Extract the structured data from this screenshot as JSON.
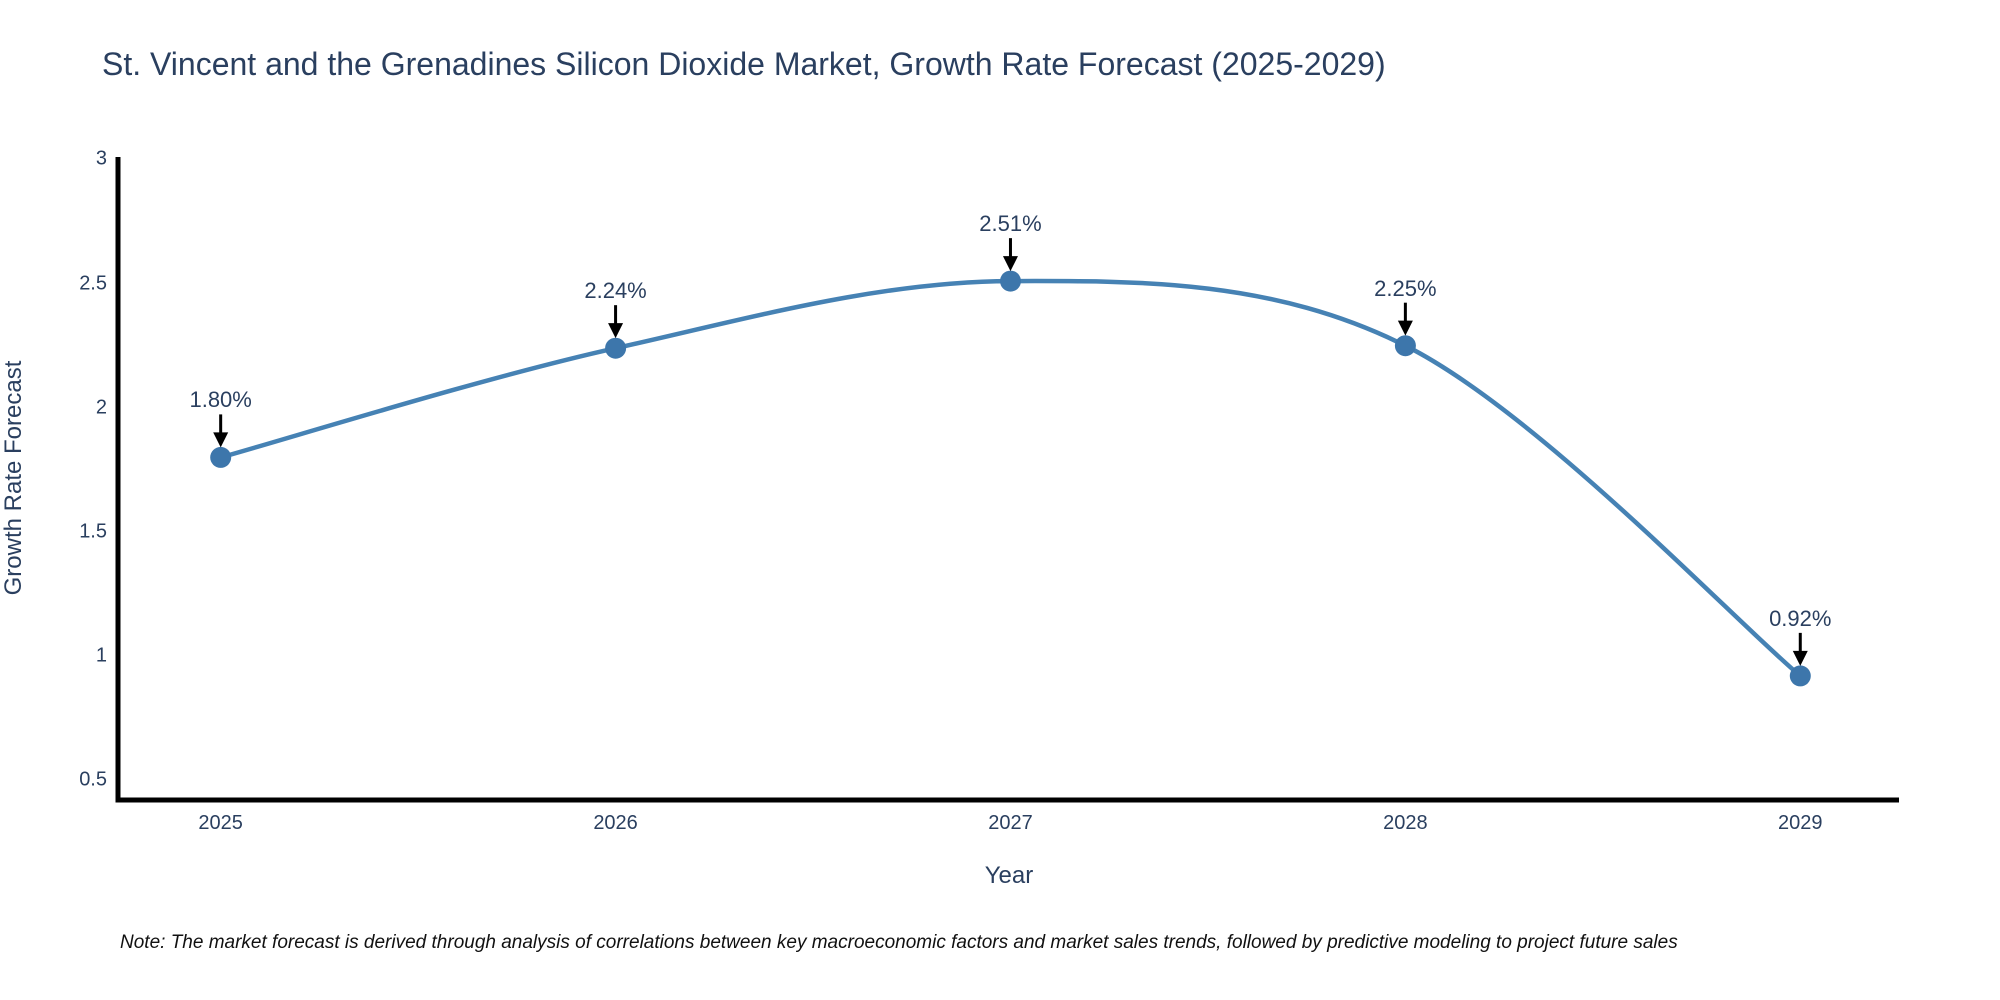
{
  "chart": {
    "title": "St. Vincent and the Grenadines Silicon Dioxide Market, Growth Rate Forecast (2025-2029)",
    "xlabel": "Year",
    "ylabel": "Growth Rate Forecast",
    "note": "Note: The market forecast is derived through analysis of correlations between key macroeconomic factors and market sales trends, followed by predictive modeling to project future sales"
  },
  "chart_data": {
    "type": "line",
    "line_shape": "spline",
    "title": "St. Vincent and the Grenadines Silicon Dioxide Market, Growth Rate Forecast (2025-2029)",
    "xlabel": "Year",
    "ylabel": "Growth Rate Forecast",
    "x": [
      2025,
      2026,
      2027,
      2028,
      2029
    ],
    "y": [
      1.8,
      2.24,
      2.51,
      2.25,
      0.92
    ],
    "point_labels": [
      "1.80%",
      "2.24%",
      "2.51%",
      "2.25%",
      "0.92%"
    ],
    "xtick_labels": [
      "2025",
      "2026",
      "2027",
      "2028",
      "2029"
    ],
    "xtick_values": [
      2025,
      2026,
      2027,
      2028,
      2029
    ],
    "ytick_labels": [
      "0.5",
      "1",
      "1.5",
      "2",
      "2.5",
      "3"
    ],
    "ytick_values": [
      0.5,
      1,
      1.5,
      2,
      2.5,
      3
    ],
    "xlim": [
      2024.74,
      2029.25
    ],
    "ylim": [
      0.42,
      3.01
    ],
    "grid": false,
    "legend": false,
    "line_color": "#4682b4",
    "marker_color": "#3d76ab",
    "spine_color": "#000000",
    "arrow_color": "#000000",
    "text_color": "#2a3f5f"
  }
}
